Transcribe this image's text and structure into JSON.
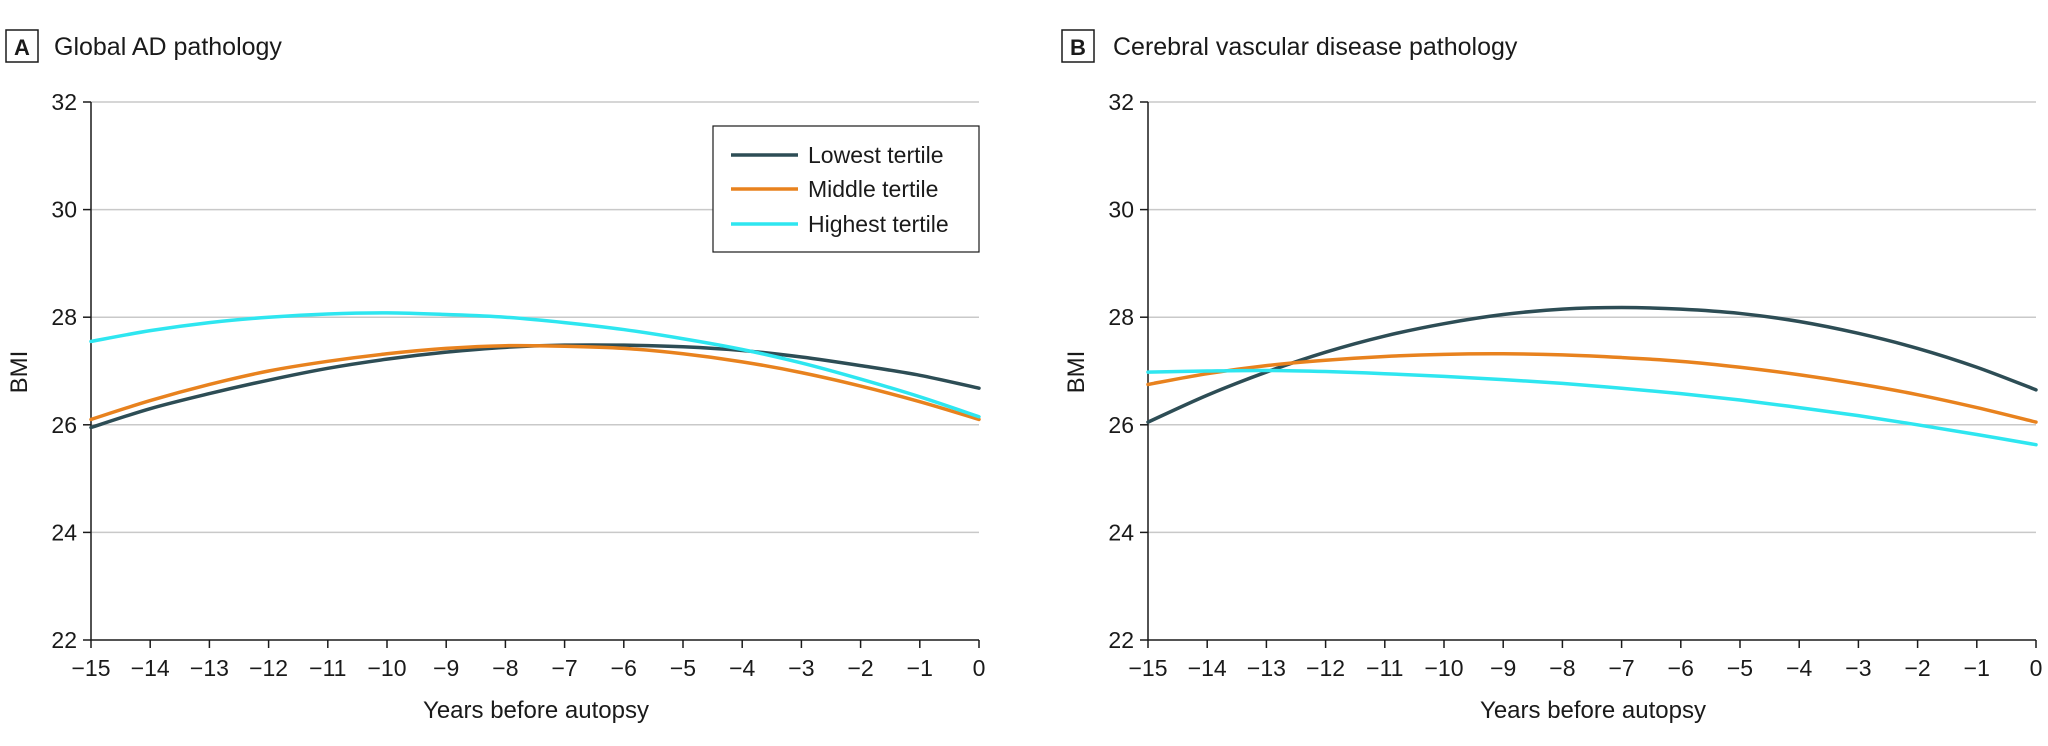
{
  "chart_data": [
    {
      "type": "line",
      "panel_letter": "A",
      "title": "Global AD pathology",
      "xlabel": "Years before autopsy",
      "ylabel": "BMI",
      "xlim": [
        -15,
        0
      ],
      "ylim": [
        22,
        32
      ],
      "xticks": [
        -15,
        -14,
        -13,
        -12,
        -11,
        -10,
        -9,
        -8,
        -7,
        -6,
        -5,
        -4,
        -3,
        -2,
        -1,
        0
      ],
      "yticks": [
        22,
        24,
        26,
        28,
        30,
        32
      ],
      "grid": true,
      "legend": "top-right",
      "x": [
        -15,
        -14,
        -13,
        -12,
        -11,
        -10,
        -9,
        -8,
        -7,
        -6,
        -5,
        -4,
        -3,
        -2,
        -1,
        0
      ],
      "series": [
        {
          "name": "Lowest tertile",
          "color": "#2d4d55",
          "values": [
            25.95,
            26.3,
            26.58,
            26.83,
            27.05,
            27.22,
            27.35,
            27.44,
            27.48,
            27.48,
            27.45,
            27.38,
            27.26,
            27.1,
            26.92,
            26.68
          ]
        },
        {
          "name": "Middle tertile",
          "color": "#e8821e",
          "values": [
            26.1,
            26.45,
            26.75,
            27.0,
            27.18,
            27.32,
            27.42,
            27.47,
            27.46,
            27.42,
            27.32,
            27.17,
            26.97,
            26.72,
            26.43,
            26.1
          ]
        },
        {
          "name": "Highest tertile",
          "color": "#2ee6f0",
          "values": [
            27.55,
            27.75,
            27.9,
            28.0,
            28.06,
            28.08,
            28.05,
            28.0,
            27.9,
            27.77,
            27.6,
            27.4,
            27.15,
            26.85,
            26.52,
            26.15
          ]
        }
      ]
    },
    {
      "type": "line",
      "panel_letter": "B",
      "title": "Cerebral vascular disease pathology",
      "xlabel": "Years before autopsy",
      "ylabel": "BMI",
      "xlim": [
        -15,
        0
      ],
      "ylim": [
        22,
        32
      ],
      "xticks": [
        -15,
        -14,
        -13,
        -12,
        -11,
        -10,
        -9,
        -8,
        -7,
        -6,
        -5,
        -4,
        -3,
        -2,
        -1,
        0
      ],
      "yticks": [
        22,
        24,
        26,
        28,
        30,
        32
      ],
      "grid": true,
      "legend": "none",
      "x": [
        -15,
        -14,
        -13,
        -12,
        -11,
        -10,
        -9,
        -8,
        -7,
        -6,
        -5,
        -4,
        -3,
        -2,
        -1,
        0
      ],
      "series": [
        {
          "name": "Lowest tertile",
          "color": "#2d4d55",
          "values": [
            26.05,
            26.55,
            26.98,
            27.35,
            27.65,
            27.88,
            28.05,
            28.15,
            28.18,
            28.15,
            28.07,
            27.92,
            27.7,
            27.42,
            27.07,
            26.65
          ]
        },
        {
          "name": "Middle tertile",
          "color": "#e8821e",
          "values": [
            26.75,
            26.95,
            27.1,
            27.2,
            27.27,
            27.31,
            27.32,
            27.3,
            27.25,
            27.18,
            27.07,
            26.93,
            26.76,
            26.56,
            26.32,
            26.05
          ]
        },
        {
          "name": "Highest tertile",
          "color": "#2ee6f0",
          "values": [
            26.98,
            27.0,
            27.01,
            26.99,
            26.95,
            26.9,
            26.84,
            26.77,
            26.68,
            26.58,
            26.46,
            26.32,
            26.17,
            26.0,
            25.82,
            25.63
          ]
        }
      ]
    }
  ]
}
